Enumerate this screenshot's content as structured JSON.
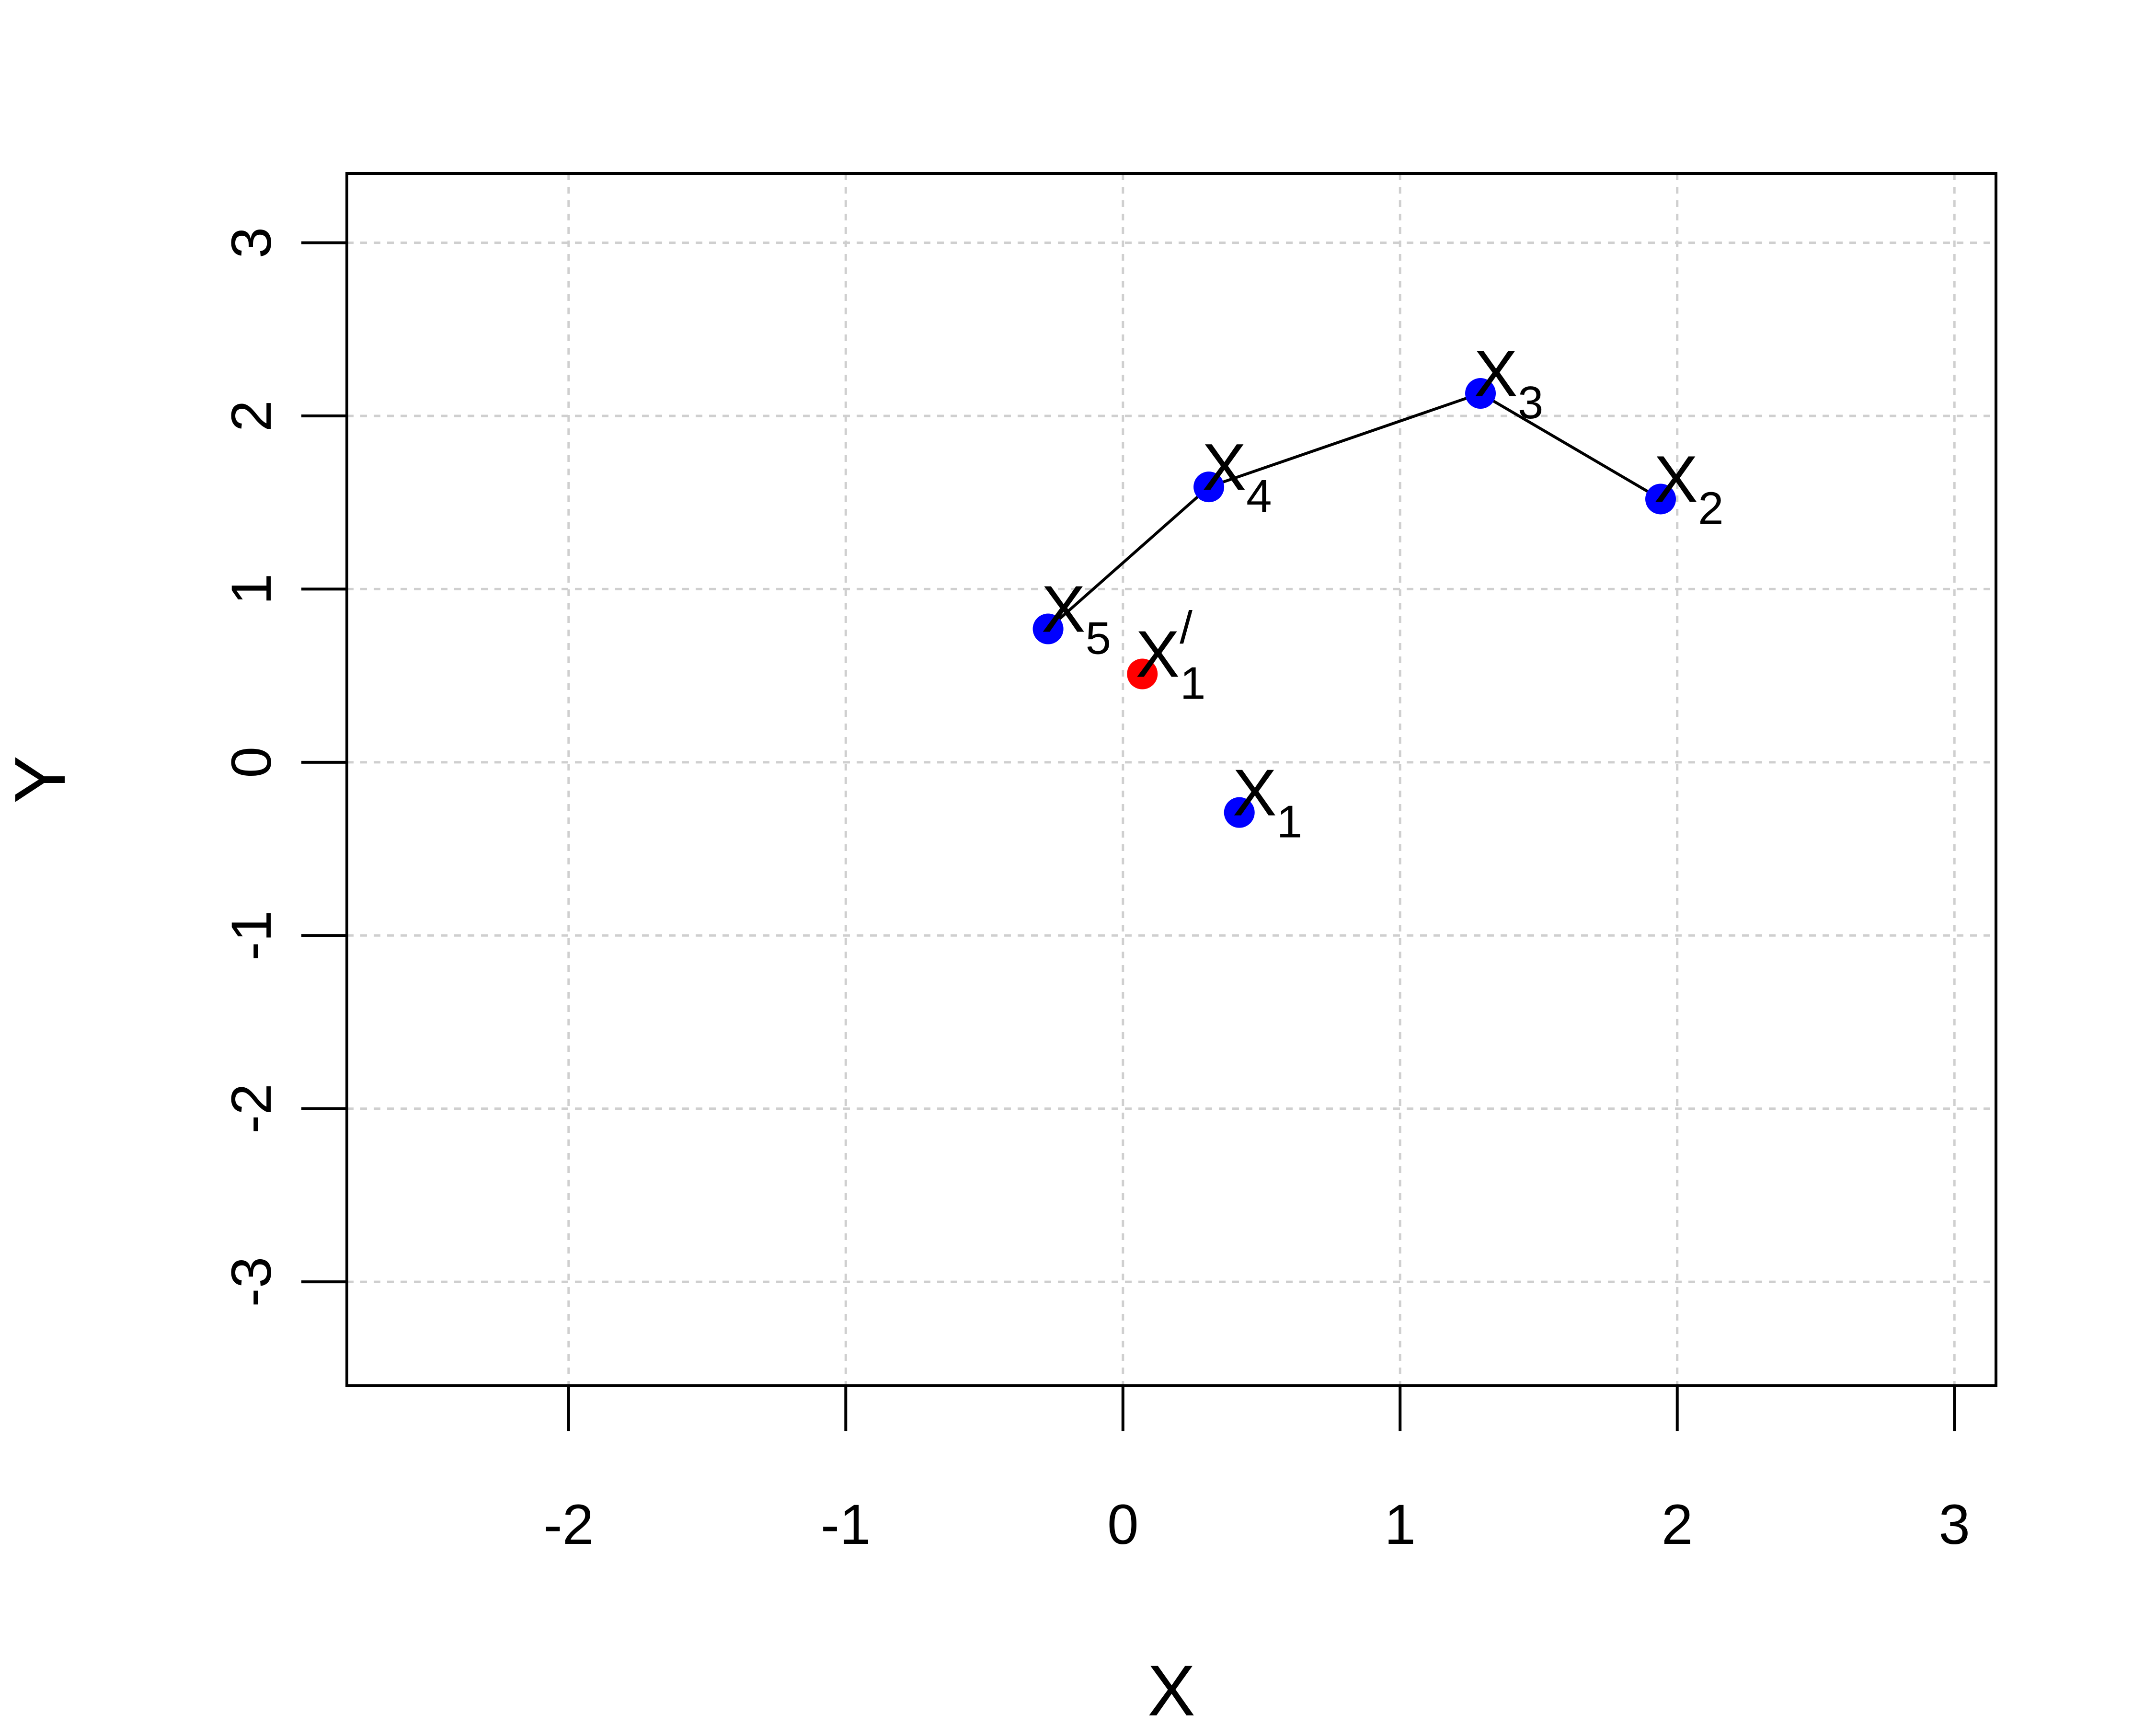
{
  "chart_data": {
    "type": "scatter",
    "xlabel": "X",
    "ylabel": "Y",
    "xlim": [
      -2.8,
      3.15
    ],
    "ylim": [
      -3.6,
      3.4
    ],
    "x_ticks": [
      -2,
      -1,
      0,
      1,
      2,
      3
    ],
    "y_ticks": [
      -3,
      -2,
      -1,
      0,
      1,
      2,
      3
    ],
    "x_tick_labels": [
      "-2",
      "-1",
      "0",
      "1",
      "2",
      "3"
    ],
    "y_tick_labels": [
      "-3",
      "-2",
      "-1",
      "0",
      "1",
      "2",
      "3"
    ],
    "grid": true,
    "points": [
      {
        "x": 0.42,
        "y": -0.29,
        "color": "#0000ff",
        "label": "X",
        "sub": "1",
        "sup": ""
      },
      {
        "x": 1.94,
        "y": 1.52,
        "color": "#0000ff",
        "label": "X",
        "sub": "2",
        "sup": ""
      },
      {
        "x": 1.29,
        "y": 2.13,
        "color": "#0000ff",
        "label": "X",
        "sub": "3",
        "sup": ""
      },
      {
        "x": 0.31,
        "y": 1.59,
        "color": "#0000ff",
        "label": "X",
        "sub": "4",
        "sup": ""
      },
      {
        "x": -0.27,
        "y": 0.77,
        "color": "#0000ff",
        "label": "X",
        "sub": "5",
        "sup": ""
      },
      {
        "x": 0.07,
        "y": 0.51,
        "color": "#ff0000",
        "label": "X",
        "sub": "1",
        "sup": "/"
      }
    ],
    "path_order": [
      4,
      3,
      2,
      1
    ]
  }
}
